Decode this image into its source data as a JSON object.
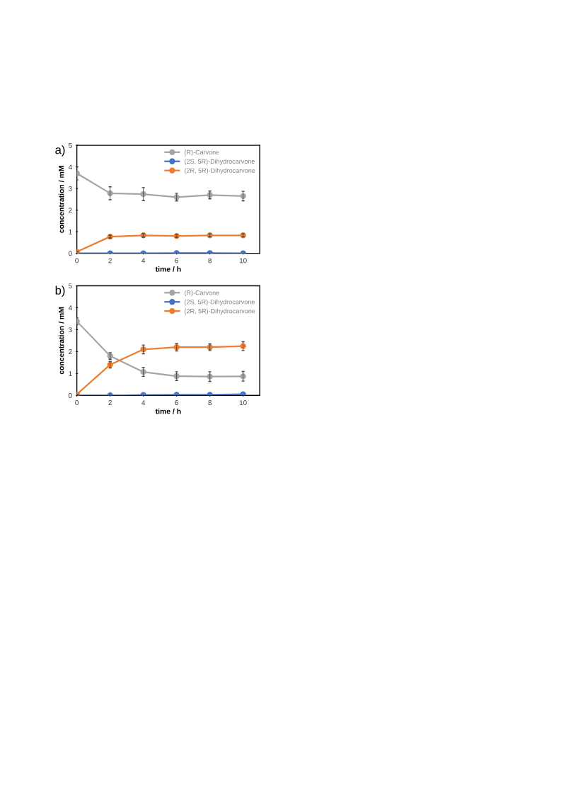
{
  "chart_data": [
    {
      "type": "line",
      "annotations": [
        "a)"
      ],
      "xlabel": "time / h",
      "ylabel": "concentration / mM",
      "x": [
        0,
        2,
        4,
        6,
        8,
        10
      ],
      "xlim": [
        0,
        11
      ],
      "xticks": [
        0,
        2,
        4,
        6,
        8,
        10
      ],
      "ylim": [
        0,
        5
      ],
      "yticks": [
        0,
        1,
        2,
        3,
        4,
        5
      ],
      "marker": "circle",
      "grid": false,
      "legend": "top right",
      "series": [
        {
          "name": "(R)-Carvone",
          "color": "#a5a5a5",
          "values": [
            3.7,
            2.78,
            2.74,
            2.6,
            2.7,
            2.65
          ],
          "errors": [
            0.3,
            0.3,
            0.3,
            0.18,
            0.18,
            0.22
          ]
        },
        {
          "name": "(2S, 5R)-Dihydrocarvone",
          "color": "#4472c4",
          "values": [
            0,
            0,
            0,
            0.01,
            0.01,
            0
          ]
        },
        {
          "name": "(2R, 5R)-Dihydrocarvone",
          "color": "#ed7d31",
          "values": [
            0.07,
            0.77,
            0.83,
            0.8,
            0.83,
            0.83
          ],
          "errors": [
            null,
            0.06,
            0.08,
            0.06,
            0.07,
            0.07
          ]
        }
      ]
    },
    {
      "type": "line",
      "annotations": [
        "b)"
      ],
      "xlabel": "time / h",
      "ylabel": "concentration / mM",
      "x": [
        0,
        2,
        4,
        6,
        8,
        10
      ],
      "xlim": [
        0,
        11
      ],
      "xticks": [
        0,
        2,
        4,
        6,
        8,
        10
      ],
      "ylim": [
        0,
        5
      ],
      "yticks": [
        0,
        1,
        2,
        3,
        4,
        5
      ],
      "marker": "circle",
      "grid": false,
      "legend": "top right",
      "series": [
        {
          "name": "(R)-Carvone",
          "color": "#a5a5a5",
          "values": [
            3.38,
            1.8,
            1.07,
            0.88,
            0.86,
            0.87
          ],
          "errors": [
            0.15,
            0.15,
            0.2,
            0.2,
            0.22,
            0.22
          ]
        },
        {
          "name": "(2S, 5R)-Dihydrocarvone",
          "color": "#4472c4",
          "values": [
            0,
            0,
            0.02,
            0.03,
            0.03,
            0.05
          ]
        },
        {
          "name": "(2R, 5R)-Dihydrocarvone",
          "color": "#ed7d31",
          "values": [
            0.05,
            1.4,
            2.1,
            2.2,
            2.2,
            2.25
          ],
          "errors": [
            null,
            0.15,
            0.2,
            0.17,
            0.15,
            0.2
          ]
        }
      ]
    }
  ]
}
